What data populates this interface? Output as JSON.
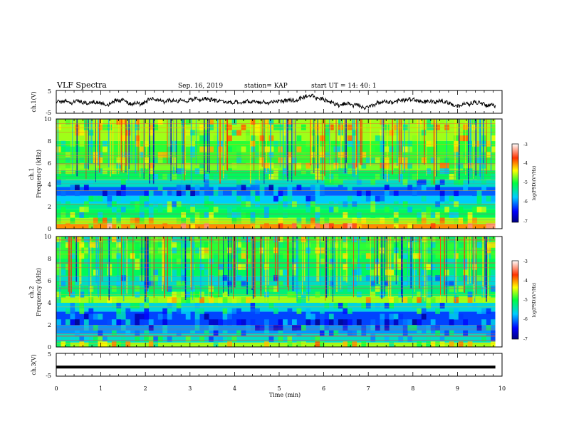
{
  "header": {
    "title": "VLF Spectra",
    "date": "Sep. 16, 2019",
    "station": "station= KAP",
    "start": "start  UT =   14: 40: 1"
  },
  "chart_data": [
    {
      "type": "line",
      "panel": "ch1-waveform",
      "ylabel": "ch.1(V)",
      "y_ticks": [
        "5",
        "-5"
      ],
      "ylim": [
        -5,
        5
      ],
      "xlim": [
        0,
        10
      ],
      "x_end": 9.85,
      "description_values": {
        "mean": 0.0,
        "amplitude": 2.5
      }
    },
    {
      "type": "heatmap",
      "panel": "ch1-spectrogram",
      "ylabel_line1": "ch.1",
      "ylabel_line2": "Frequency (kHz)",
      "y_ticks": [
        "0",
        "2",
        "4",
        "6",
        "8",
        "10"
      ],
      "ylim": [
        0,
        10
      ],
      "xlim": [
        0,
        10
      ],
      "colorbar": {
        "label": "log(PSD)(V²/Hz)",
        "ticks": [
          "-3",
          "-4",
          "-5",
          "-6",
          "-7"
        ],
        "range": [
          -7,
          -3
        ]
      },
      "bands": [
        {
          "f": [
            0.0,
            0.4
          ],
          "v": -4.0
        },
        {
          "f": [
            0.4,
            1.0
          ],
          "v": -4.6
        },
        {
          "f": [
            1.0,
            1.8
          ],
          "v": -5.1
        },
        {
          "f": [
            1.8,
            2.3
          ],
          "v": -5.3
        },
        {
          "f": [
            2.3,
            3.0
          ],
          "v": -5.7
        },
        {
          "f": [
            3.0,
            3.8
          ],
          "v": -6.1
        },
        {
          "f": [
            3.8,
            4.5
          ],
          "v": -5.5
        },
        {
          "f": [
            4.5,
            5.3
          ],
          "v": -5.1
        },
        {
          "f": [
            5.3,
            5.9
          ],
          "v": -4.7
        },
        {
          "f": [
            5.9,
            8.0
          ],
          "v": -4.9
        },
        {
          "f": [
            8.0,
            10.0
          ],
          "v": -4.6
        }
      ]
    },
    {
      "type": "heatmap",
      "panel": "ch2-spectrogram",
      "ylabel_line1": "ch.2",
      "ylabel_line2": "Frequency (kHz)",
      "y_ticks": [
        "0",
        "2",
        "4",
        "6",
        "8",
        "10"
      ],
      "ylim": [
        0,
        10
      ],
      "xlim": [
        0,
        10
      ],
      "colorbar": {
        "label": "log(PSD)(V²/Hz)",
        "ticks": [
          "-3",
          "-4",
          "-5",
          "-6",
          "-7"
        ],
        "range": [
          -7,
          -3
        ]
      },
      "bands": [
        {
          "f": [
            0.0,
            0.4
          ],
          "v": -4.6
        },
        {
          "f": [
            0.4,
            1.2
          ],
          "v": -5.5
        },
        {
          "f": [
            1.2,
            2.0
          ],
          "v": -5.9
        },
        {
          "f": [
            2.0,
            3.2
          ],
          "v": -6.2
        },
        {
          "f": [
            3.2,
            4.0
          ],
          "v": -5.6
        },
        {
          "f": [
            4.0,
            4.6
          ],
          "v": -4.6
        },
        {
          "f": [
            4.6,
            5.6
          ],
          "v": -5.2
        },
        {
          "f": [
            5.6,
            6.4
          ],
          "v": -5.5
        },
        {
          "f": [
            6.4,
            8.0
          ],
          "v": -5.1
        },
        {
          "f": [
            8.0,
            10.0
          ],
          "v": -4.9
        }
      ]
    },
    {
      "type": "line",
      "panel": "ch3-waveform",
      "ylabel": "ch.3(V)",
      "y_ticks": [
        "5",
        "-5"
      ],
      "ylim": [
        -5,
        5
      ],
      "xlim": [
        0,
        10
      ],
      "x_end": 9.85,
      "constant_value": -1.0,
      "xlabel": "Time (min)",
      "x_ticks": [
        "0",
        "1",
        "2",
        "3",
        "4",
        "5",
        "6",
        "7",
        "8",
        "9",
        "10"
      ]
    }
  ]
}
